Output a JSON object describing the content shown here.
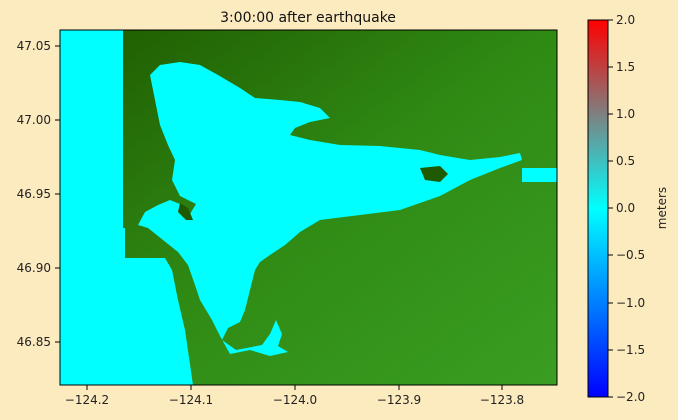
{
  "chart_data": {
    "type": "heatmap",
    "title": "3:00:00 after earthquake",
    "xlim": [
      -124.24,
      -123.75
    ],
    "ylim": [
      46.82,
      47.06
    ],
    "x_ticks": [
      -124.2,
      -124.1,
      -124.0,
      -123.9,
      -123.8
    ],
    "x_tick_labels": [
      "−124.2",
      "−124.1",
      "−124.0",
      "−123.9",
      "−123.8"
    ],
    "y_ticks": [
      46.85,
      46.9,
      46.95,
      47.0,
      47.05
    ],
    "y_tick_labels": [
      "46.85",
      "46.90",
      "46.95",
      "47.00",
      "47.05"
    ],
    "colorbar": {
      "label": "meters",
      "range": [
        -2.0,
        2.0
      ],
      "ticks": [
        -2.0,
        -1.5,
        -1.0,
        -0.5,
        0.0,
        0.5,
        1.0,
        1.5,
        2.0
      ],
      "tick_labels": [
        "−2.0",
        "−1.5",
        "−1.0",
        "−0.5",
        "0.0",
        "0.5",
        "1.0",
        "1.5",
        "2.0"
      ],
      "colors": [
        "#0000ff",
        "#00ffff",
        "#ff0000"
      ]
    },
    "colors": {
      "water": "#00ffff",
      "land_dark": "#1f5a00",
      "land_light": "#3fae2a"
    }
  }
}
